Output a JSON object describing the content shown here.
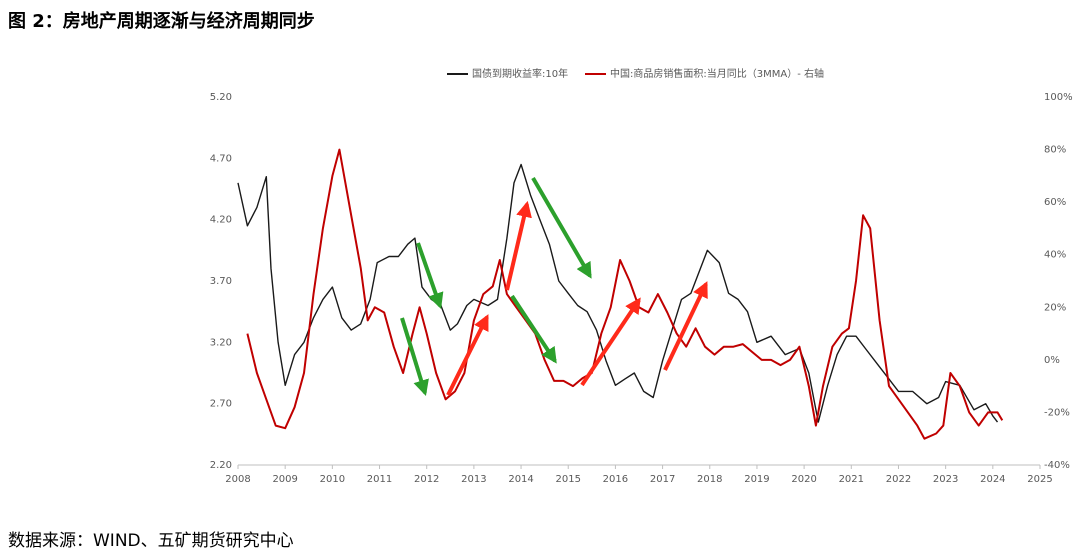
{
  "chart_data": {
    "type": "line",
    "title": "图 2：房地产周期逐渐与经济周期同步",
    "source": "数据来源：WIND、五矿期货研究中心",
    "xlim": [
      2008,
      2025
    ],
    "xticks": [
      2008,
      2009,
      2010,
      2011,
      2012,
      2013,
      2014,
      2015,
      2016,
      2017,
      2018,
      2019,
      2020,
      2021,
      2022,
      2023,
      2024,
      2025
    ],
    "ylim": [
      2.2,
      5.2
    ],
    "yticks": [
      {
        "value": 2.2,
        "label": "2.20"
      },
      {
        "value": 2.7,
        "label": "2.70"
      },
      {
        "value": 3.2,
        "label": "3.20"
      },
      {
        "value": 3.7,
        "label": "3.70"
      },
      {
        "value": 4.2,
        "label": "4.20"
      },
      {
        "value": 4.7,
        "label": "4.70"
      },
      {
        "value": 5.2,
        "label": "5.20"
      }
    ],
    "y2lim": [
      -40,
      100
    ],
    "y2ticks": [
      {
        "value": -40,
        "label": "-40%"
      },
      {
        "value": -20,
        "label": "-20%"
      },
      {
        "value": 0,
        "label": "0%"
      },
      {
        "value": 20,
        "label": "20%"
      },
      {
        "value": 40,
        "label": "40%"
      },
      {
        "value": 60,
        "label": "60%"
      },
      {
        "value": 80,
        "label": "80%"
      },
      {
        "value": 100,
        "label": "100%"
      }
    ],
    "legend": "top",
    "series": [
      {
        "name": "国债到期收益率:10年",
        "color": "#1a1a1a",
        "x": [
          2008.0,
          2008.2,
          2008.4,
          2008.6,
          2008.7,
          2008.85,
          2009.0,
          2009.2,
          2009.4,
          2009.6,
          2009.8,
          2010.0,
          2010.2,
          2010.4,
          2010.6,
          2010.8,
          2010.95,
          2011.2,
          2011.4,
          2011.6,
          2011.75,
          2011.9,
          2012.1,
          2012.3,
          2012.5,
          2012.65,
          2012.85,
          2013.0,
          2013.3,
          2013.5,
          2013.7,
          2013.85,
          2014.0,
          2014.2,
          2014.4,
          2014.6,
          2014.8,
          2015.0,
          2015.2,
          2015.4,
          2015.6,
          2015.8,
          2016.0,
          2016.2,
          2016.4,
          2016.6,
          2016.8,
          2017.0,
          2017.2,
          2017.4,
          2017.6,
          2017.8,
          2017.95,
          2018.2,
          2018.4,
          2018.6,
          2018.8,
          2019.0,
          2019.3,
          2019.6,
          2019.9,
          2020.1,
          2020.3,
          2020.5,
          2020.7,
          2020.9,
          2021.1,
          2021.3,
          2021.6,
          2021.8,
          2022.0,
          2022.3,
          2022.6,
          2022.85,
          2023.0,
          2023.3,
          2023.6,
          2023.85,
          2024.0,
          2024.1
        ],
        "values": [
          4.5,
          4.15,
          4.3,
          4.55,
          3.8,
          3.2,
          2.85,
          3.1,
          3.2,
          3.4,
          3.55,
          3.65,
          3.4,
          3.3,
          3.35,
          3.55,
          3.85,
          3.9,
          3.9,
          4.0,
          4.05,
          3.65,
          3.55,
          3.5,
          3.3,
          3.35,
          3.5,
          3.55,
          3.5,
          3.55,
          4.05,
          4.5,
          4.65,
          4.4,
          4.2,
          4.0,
          3.7,
          3.6,
          3.5,
          3.45,
          3.3,
          3.05,
          2.85,
          2.9,
          2.95,
          2.8,
          2.75,
          3.05,
          3.3,
          3.55,
          3.6,
          3.8,
          3.95,
          3.85,
          3.6,
          3.55,
          3.45,
          3.2,
          3.25,
          3.1,
          3.15,
          2.95,
          2.55,
          2.85,
          3.1,
          3.25,
          3.25,
          3.15,
          3.0,
          2.9,
          2.8,
          2.8,
          2.7,
          2.75,
          2.88,
          2.85,
          2.65,
          2.7,
          2.6,
          2.55
        ]
      },
      {
        "name": "中国:商品房销售面积:当月同比（3MMA）- 右轴",
        "color": "#c00000",
        "axis": "y2",
        "x": [
          2008.2,
          2008.4,
          2008.6,
          2008.8,
          2009.0,
          2009.2,
          2009.4,
          2009.6,
          2009.8,
          2010.0,
          2010.15,
          2010.4,
          2010.6,
          2010.75,
          2010.9,
          2011.1,
          2011.3,
          2011.5,
          2011.7,
          2011.85,
          2012.0,
          2012.2,
          2012.4,
          2012.6,
          2012.8,
          2013.0,
          2013.2,
          2013.4,
          2013.55,
          2013.7,
          2013.9,
          2014.1,
          2014.3,
          2014.5,
          2014.7,
          2014.9,
          2015.1,
          2015.3,
          2015.5,
          2015.7,
          2015.9,
          2016.1,
          2016.3,
          2016.5,
          2016.7,
          2016.9,
          2017.1,
          2017.3,
          2017.5,
          2017.7,
          2017.9,
          2018.1,
          2018.3,
          2018.5,
          2018.7,
          2018.9,
          2019.1,
          2019.3,
          2019.5,
          2019.7,
          2019.9,
          2020.1,
          2020.25,
          2020.4,
          2020.6,
          2020.8,
          2020.95,
          2021.1,
          2021.25,
          2021.4,
          2021.6,
          2021.8,
          2022.0,
          2022.2,
          2022.4,
          2022.55,
          2022.8,
          2022.95,
          2023.1,
          2023.3,
          2023.5,
          2023.7,
          2023.9,
          2024.1,
          2024.2
        ],
        "values": [
          10,
          -5,
          -15,
          -25,
          -26,
          -18,
          -5,
          25,
          50,
          70,
          80,
          55,
          35,
          15,
          20,
          18,
          5,
          -5,
          10,
          20,
          10,
          -5,
          -15,
          -12,
          -5,
          15,
          25,
          28,
          38,
          25,
          20,
          15,
          10,
          0,
          -8,
          -8,
          -10,
          -7,
          -5,
          10,
          20,
          38,
          30,
          20,
          18,
          25,
          18,
          10,
          5,
          12,
          5,
          2,
          5,
          5,
          6,
          3,
          0,
          0,
          -2,
          0,
          5,
          -10,
          -25,
          -10,
          5,
          10,
          12,
          30,
          55,
          50,
          15,
          -10,
          -15,
          -20,
          -25,
          -30,
          -28,
          -25,
          -5,
          -10,
          -20,
          -25,
          -20,
          -20,
          -23
        ]
      }
    ]
  }
}
